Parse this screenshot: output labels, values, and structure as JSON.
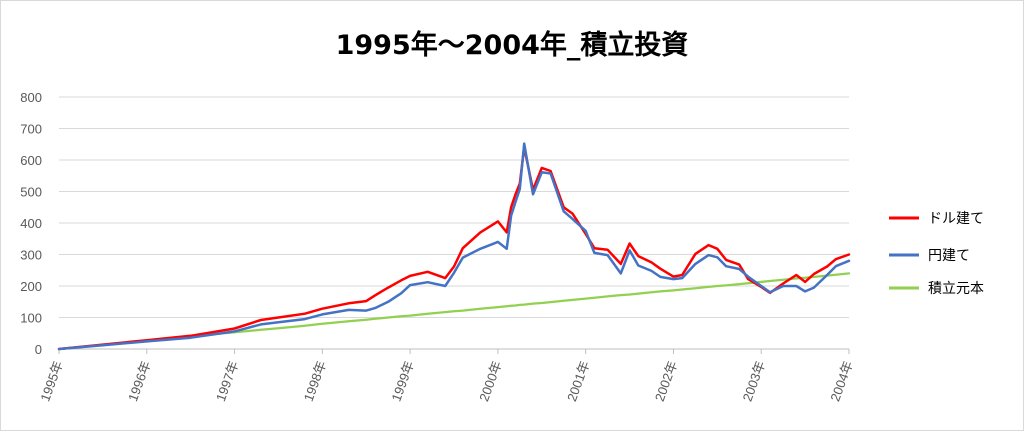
{
  "chart_data": {
    "type": "line",
    "title": "1995年～2004年_積立投資",
    "xlabel": "",
    "ylabel": "",
    "ylim": [
      0,
      800
    ],
    "y_ticks": [
      0,
      100,
      200,
      300,
      400,
      500,
      600,
      700,
      800
    ],
    "x_ticks": [
      "1995年",
      "1996年",
      "1997年",
      "1998年",
      "1999年",
      "2000年",
      "2001年",
      "2002年",
      "2003年",
      "2004年"
    ],
    "grid": true,
    "legend_position": "right",
    "x": [
      1995.0,
      1995.5,
      1996.0,
      1996.5,
      1997.0,
      1997.3,
      1997.5,
      1997.8,
      1998.0,
      1998.3,
      1998.5,
      1998.6,
      1998.75,
      1998.9,
      1999.0,
      1999.2,
      1999.4,
      1999.5,
      1999.6,
      1999.8,
      2000.0,
      2000.1,
      2000.15,
      2000.2,
      2000.25,
      2000.3,
      2000.4,
      2000.5,
      2000.6,
      2000.75,
      2000.85,
      2001.0,
      2001.1,
      2001.25,
      2001.4,
      2001.5,
      2001.6,
      2001.75,
      2001.85,
      2002.0,
      2002.1,
      2002.25,
      2002.4,
      2002.5,
      2002.6,
      2002.75,
      2002.85,
      2003.0,
      2003.1,
      2003.25,
      2003.4,
      2003.5,
      2003.6,
      2003.75,
      2003.85,
      2004.0
    ],
    "series": [
      {
        "name": "ドル建て",
        "color": "#ff0000",
        "values": [
          0,
          14,
          28,
          42,
          65,
          92,
          100,
          112,
          128,
          145,
          152,
          170,
          195,
          218,
          232,
          245,
          225,
          262,
          320,
          370,
          405,
          370,
          450,
          490,
          525,
          640,
          505,
          575,
          565,
          450,
          430,
          365,
          320,
          315,
          270,
          335,
          295,
          275,
          255,
          230,
          235,
          302,
          330,
          318,
          283,
          268,
          222,
          197,
          178,
          208,
          235,
          213,
          238,
          262,
          285,
          300
        ]
      },
      {
        "name": "円建て",
        "color": "#4472c4",
        "values": [
          0,
          12,
          24,
          36,
          56,
          78,
          85,
          95,
          110,
          124,
          122,
          130,
          150,
          177,
          203,
          212,
          200,
          242,
          290,
          318,
          340,
          318,
          423,
          466,
          508,
          652,
          491,
          561,
          557,
          437,
          413,
          375,
          305,
          298,
          240,
          313,
          265,
          248,
          229,
          222,
          225,
          270,
          298,
          291,
          263,
          254,
          230,
          200,
          180,
          200,
          200,
          183,
          195,
          235,
          263,
          280
        ]
      },
      {
        "name": "積立元本",
        "color": "#92d050",
        "values": [
          0,
          13,
          26,
          40,
          53,
          61,
          66,
          74,
          80,
          88,
          93,
          96,
          100,
          104,
          106,
          112,
          117,
          120,
          122,
          128,
          133,
          136,
          137,
          138,
          140,
          141,
          144,
          146,
          149,
          153,
          156,
          160,
          163,
          167,
          171,
          173,
          176,
          180,
          183,
          186,
          189,
          193,
          197,
          200,
          202,
          206,
          209,
          213,
          216,
          220,
          224,
          226,
          229,
          233,
          236,
          240
        ]
      }
    ]
  }
}
